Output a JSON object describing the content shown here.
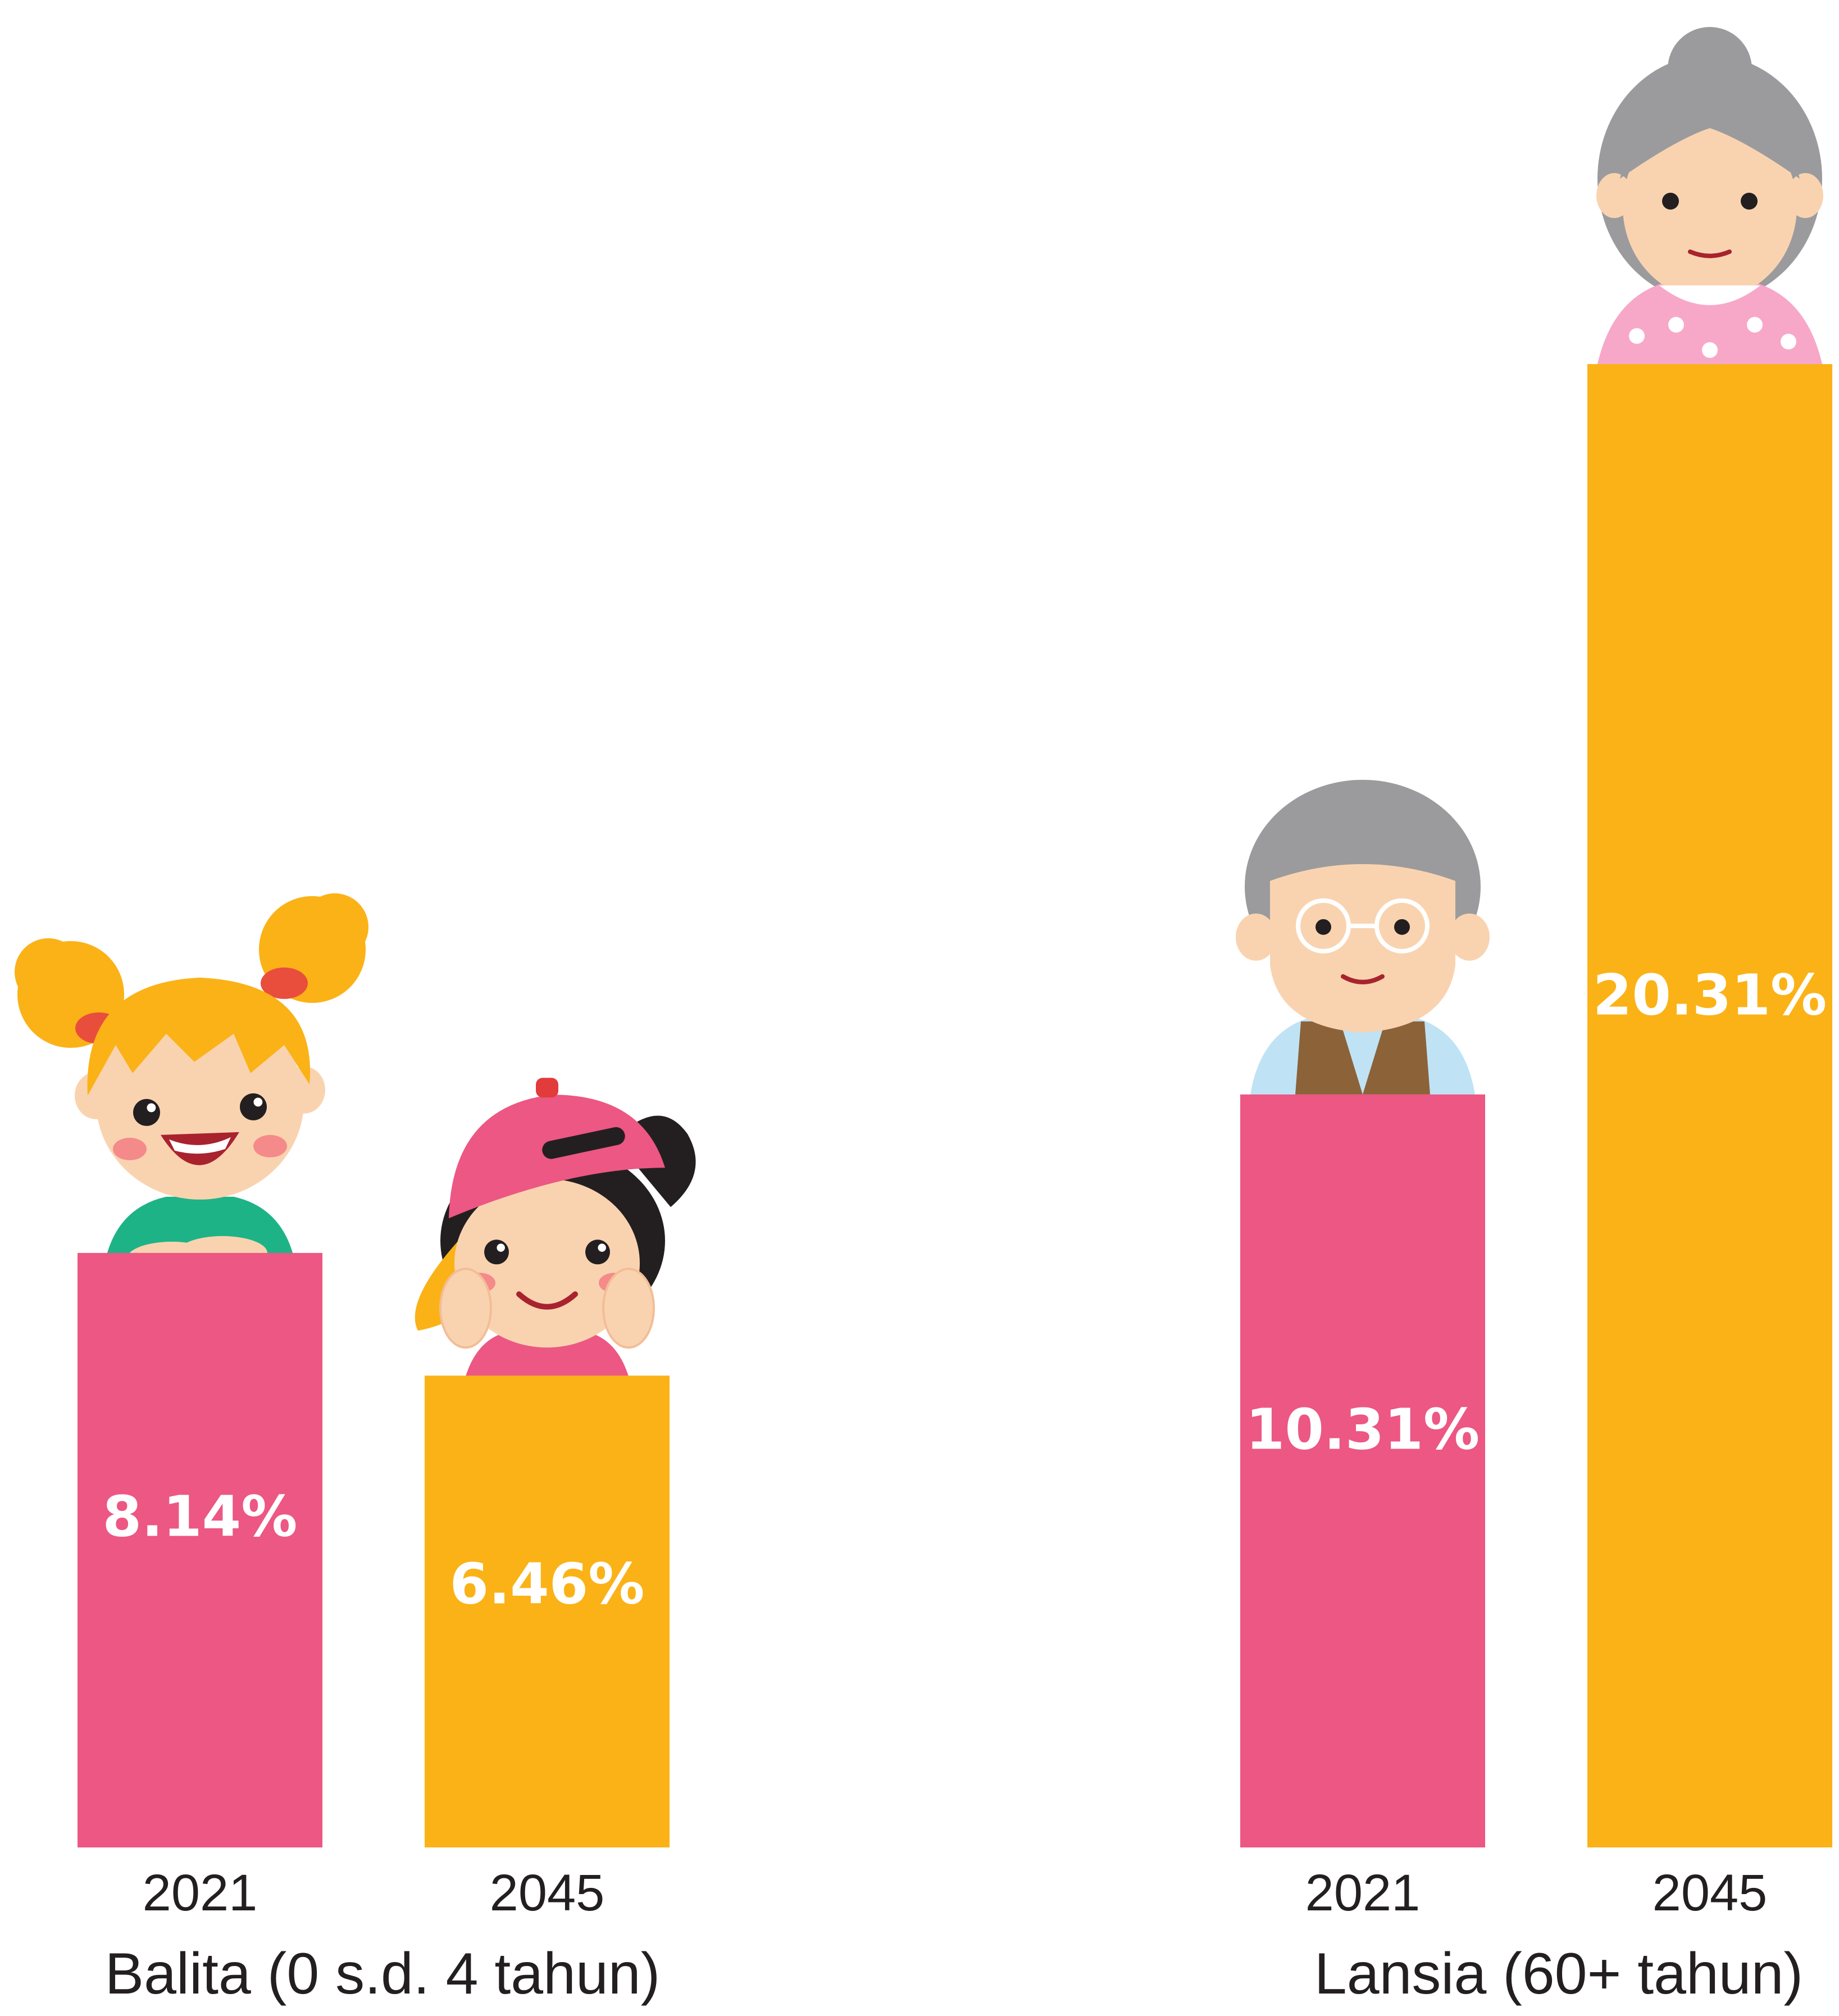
{
  "chart_data": {
    "type": "bar",
    "unit": "%",
    "groups": [
      {
        "name": "Balita (0 s.d. 4 tahun)",
        "categories": [
          "2021",
          "2045"
        ],
        "values": [
          8.14,
          6.46
        ],
        "labels": [
          "8.14%",
          "6.46%"
        ],
        "illustrations": [
          "girl-illustration",
          "boy-with-cap-illustration"
        ]
      },
      {
        "name": "Lansia (60+ tahun)",
        "categories": [
          "2021",
          "2045"
        ],
        "values": [
          10.31,
          20.31
        ],
        "labels": [
          "10.31%",
          "20.31%"
        ],
        "illustrations": [
          "grandfather-illustration",
          "grandmother-illustration"
        ]
      }
    ],
    "series_colors": [
      "#ec5783",
      "#fbb217"
    ],
    "title": "",
    "xlabel": "",
    "ylabel": "",
    "grid": false,
    "legend": "none"
  }
}
